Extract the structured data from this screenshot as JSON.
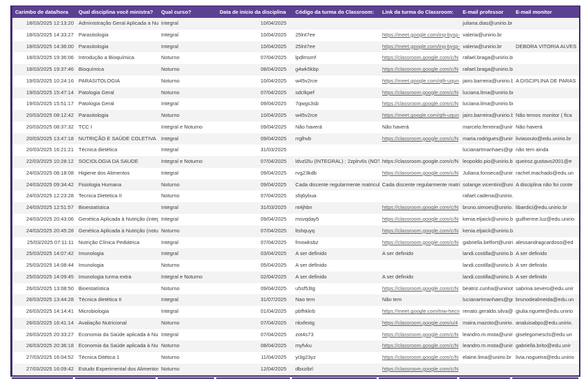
{
  "colors": {
    "header_bg": "#5b4191",
    "border": "#3f2a6e",
    "row_alt": "#f3f3f3",
    "text": "#3b3b3b",
    "header_text": "#ffffff",
    "link": "#5c5f63"
  },
  "table": {
    "columns": [
      {
        "key": "timestamp",
        "label": "Carimbo de data/hora"
      },
      {
        "key": "disciplina",
        "label": "Qual disciplina você ministra?"
      },
      {
        "key": "curso",
        "label": "Qual curso?"
      },
      {
        "key": "inicio",
        "label": "Data de início da disciplina"
      },
      {
        "key": "codigo",
        "label": "Código da turma do Classroom:"
      },
      {
        "key": "link",
        "label": "Link da turma do Classroom:"
      },
      {
        "key": "professor",
        "label": "E-mail professor"
      },
      {
        "key": "monitor",
        "label": "E-mail monitor"
      }
    ],
    "rows": [
      {
        "timestamp": "18/03/2025 12:13:20",
        "disciplina": "Administração Geral Aplicada a Nut",
        "curso": "Integral",
        "inicio": "10/04/2025",
        "codigo": "",
        "link": "",
        "link_is_url": false,
        "professor": "juliana.dias@unirio.br",
        "monitor": ""
      },
      {
        "timestamp": "18/03/2025 14:33:27",
        "disciplina": "Parasitologia",
        "curso": "Integral",
        "inicio": "10/04/2025",
        "codigo": "25lnt7ee",
        "link": "https://meet.google.com/ing-bysp-",
        "link_is_url": true,
        "professor": "valeria@unirio.br",
        "monitor": ""
      },
      {
        "timestamp": "18/03/2025 14:36:00",
        "disciplina": "Parasitologia",
        "curso": "Integral",
        "inicio": "10/04/2025",
        "codigo": "25lnt7ee",
        "link": "https://meet.google.com/ing-bysp-",
        "link_is_url": true,
        "professor": "valeria@unirio.br",
        "monitor": "DEBORA VITORIA ALVES"
      },
      {
        "timestamp": "18/03/2025 19:36:06",
        "disciplina": "Introdução a Bioquímica",
        "curso": "Noturno",
        "inicio": "07/04/2025",
        "codigo": "lpdlmsmf",
        "link": "https://classroom.google.com/c/N",
        "link_is_url": true,
        "professor": "rafael.braga@unirio.br",
        "monitor": ""
      },
      {
        "timestamp": "18/03/2025 19:37:46",
        "disciplina": "Bioquímica",
        "curso": "Noturno",
        "inicio": "08/04/2025",
        "codigo": "g4wk5kbp",
        "link": "https://classroom.google.com/c/N",
        "link_is_url": true,
        "professor": "rafael.braga@unirio.br",
        "monitor": ""
      },
      {
        "timestamp": "19/03/2025 10:24:16",
        "disciplina": "PARASITOLOGIA",
        "curso": "Noturno",
        "inicio": "10/04/2025",
        "codigo": "w45v2rce",
        "link": "https://meet.google.com/qth-uqun",
        "link_is_url": true,
        "professor": "jairo.barreira@unirio.br",
        "monitor": "A DISCIPLINA DE PARAS"
      },
      {
        "timestamp": "19/03/2025 15:47:14",
        "disciplina": "Patologia Geral",
        "curso": "Noturno",
        "inicio": "07/04/2025",
        "codigo": "sdclkpef",
        "link": "https://classroom.google.com/c/N",
        "link_is_url": true,
        "professor": "luciana.lima@unirio.br",
        "monitor": ""
      },
      {
        "timestamp": "19/03/2025 15:51:17",
        "disciplina": "Patologia Geral",
        "curso": "Integral",
        "inicio": "09/04/2025",
        "codigo": "7qwgs3sb",
        "link": "https://classroom.google.com/c/N",
        "link_is_url": true,
        "professor": "luciana.lima@unirio.br",
        "monitor": ""
      },
      {
        "timestamp": "20/03/2025 08:12:42",
        "disciplina": "Parasitologia",
        "curso": "Noturno",
        "inicio": "10/04/2025",
        "codigo": "w45v2rce",
        "link": "https://meet.google.com/qth-uqun",
        "link_is_url": true,
        "professor": "jairo.barreira@unirio.br",
        "monitor": "Não temos monitor ( fica"
      },
      {
        "timestamp": "20/03/2025 08:37:32",
        "disciplina": "TCC I",
        "curso": "Integral e Noturno",
        "inicio": "09/04/2025",
        "codigo": "Não haverá",
        "link": "Não haverá",
        "link_is_url": false,
        "professor": "marcelo.ferreira@unirio.b",
        "monitor": "Não haverá"
      },
      {
        "timestamp": "20/03/2025 13:47:18",
        "disciplina": "NUTRIÇÃO E SAÚDE COLETIVA",
        "curso": "Integral",
        "inicio": "09/04/2025",
        "codigo": "rrglhvb",
        "link": "https://classroom.google.com/c/N",
        "link_is_url": true,
        "professor": "maria.rodrigues@unirio.b",
        "monitor": "liviasouto@edu.unirio.br"
      },
      {
        "timestamp": "20/03/2025 16:21:21",
        "disciplina": "Técnica dietética",
        "curso": "Integral",
        "inicio": "31/03/2025",
        "codigo": "",
        "link": "",
        "link_is_url": false,
        "professor": "lucianartmanhaes@gma",
        "monitor": "não tem ainda"
      },
      {
        "timestamp": "22/03/2025 10:28:12",
        "disciplina": "SOCIOLOGIA DA SAUDE",
        "curso": "Integral e Noturno",
        "inicio": "07/04/2025",
        "codigo": "ldvzl2lu (INTEGRAL) ; 2zplrv6s (NOTUI",
        "link": "https://classroom.google.com/c/N",
        "link_is_url": false,
        "professor": "leopoldo.pio@unirio.br",
        "monitor": "queiroz.gustavo2001@e"
      },
      {
        "timestamp": "24/03/2025 08:18:08",
        "disciplina": "Higiene dos Alimentos",
        "curso": "Integral",
        "inicio": "09/04/2025",
        "codigo": "rvg23kdb",
        "link": "https://classroom.google.com/c/N",
        "link_is_url": true,
        "professor": "Juliana.fonseca@unirio.b",
        "monitor": "rachel.machado@edu.un"
      },
      {
        "timestamp": "24/03/2025 09:34:42",
        "disciplina": "Fisiologia Humana",
        "curso": "Noturno",
        "inicio": "09/04/2025",
        "codigo": "Cada discente regularmente matricula",
        "link": "Cada discente regularmente matric",
        "link_is_url": false,
        "professor": "solange.vicentini@unirio",
        "monitor": "A disciplina não foi conte"
      },
      {
        "timestamp": "24/03/2025 12:23:28",
        "disciplina": "Tecnica Dietetica II",
        "curso": "Noturno",
        "inicio": "07/04/2025",
        "codigo": "sfq6ybua",
        "link": "",
        "link_is_url": false,
        "professor": "rafael.cadena@unirio.br",
        "monitor": ""
      },
      {
        "timestamp": "24/03/2025 12:51:57",
        "disciplina": "Bioestatística",
        "curso": "Integral",
        "inicio": "31/03/2025",
        "codigo": "nt4jhbn",
        "link": "https://classroom.google.com/c/N",
        "link_is_url": true,
        "professor": "bruno.simoes@unirio.br",
        "monitor": "libardici@edu.unirio.br"
      },
      {
        "timestamp": "24/03/2025 20:43:06",
        "disciplina": "Genética Aplicada à Nutrição (integr",
        "curso": "Integral",
        "inicio": "09/04/2025",
        "codigo": "msvqday5",
        "link": "https://classroom.google.com/c/N",
        "link_is_url": true,
        "professor": "kenia.eljaick@unirio.br",
        "monitor": "guilherme.luz@edu.unirio"
      },
      {
        "timestamp": "24/03/2025 20:45:28",
        "disciplina": "Genética Aplicada à Nutrição (notur",
        "curso": "Noturno",
        "inicio": "07/04/2025",
        "codigo": "ltshquyq",
        "link": "https://classroom.google.com/c/N",
        "link_is_url": true,
        "professor": "kenia.eljaick@unirio.br",
        "monitor": ""
      },
      {
        "timestamp": "25/03/2025 07:11:11",
        "disciplina": "Nutrição Clínica Pediátrica",
        "curso": "Integral",
        "inicio": "07/04/2025",
        "codigo": "fmowksbz",
        "link": "https://classroom.google.com/c/N",
        "link_is_url": true,
        "professor": "gabriella.belfort@unirio.b",
        "monitor": "alessandragcardoso@ed"
      },
      {
        "timestamp": "25/03/2025 14:07:42",
        "disciplina": "Imunologia",
        "curso": "Integral",
        "inicio": "03/04/2025",
        "codigo": "A ser definido",
        "link": "A ser definido",
        "link_is_url": false,
        "professor": "landi.costilla@unirio.br",
        "monitor": "A ser definido"
      },
      {
        "timestamp": "25/03/2025 14:08:44",
        "disciplina": "Imunologia",
        "curso": "Noturno",
        "inicio": "05/04/2025",
        "codigo": "A ser definido",
        "link": "",
        "link_is_url": false,
        "professor": "landi.costilla@unirio.br",
        "monitor": "A ser definido"
      },
      {
        "timestamp": "25/03/2025 14:09:45",
        "disciplina": "Imunologia  turma extra",
        "curso": "Integral e Noturno",
        "inicio": "02/04/2025",
        "codigo": "A ser definido",
        "link": "A ser definido",
        "link_is_url": false,
        "professor": "landi.costilla@unirio.br",
        "monitor": "A ser definido"
      },
      {
        "timestamp": "26/03/2025 13:08:50",
        "disciplina": "Bioestatística",
        "curso": "Noturno",
        "inicio": "09/04/2025",
        "codigo": "u5sf53tg",
        "link": "https://classroom.google.com/c/N",
        "link_is_url": true,
        "professor": "beatriz.cunha@uniriotec.",
        "monitor": "sabrina.severo@edu.unir"
      },
      {
        "timestamp": "26/03/2025 13:44:28",
        "disciplina": "Técnica dietética II",
        "curso": "Integral",
        "inicio": "31/07/2025",
        "codigo": "Nao tem",
        "link": "Não tem",
        "link_is_url": false,
        "professor": "lucianartmanhaes@gma",
        "monitor": "brunodealmeida@edu.un"
      },
      {
        "timestamp": "26/03/2025 14:14:41",
        "disciplina": "Microbiologia",
        "curso": "Integral",
        "inicio": "01/04/2025",
        "codigo": "pbfhkkrb",
        "link": "https://meet.google.com/tnw-hecn",
        "link_is_url": true,
        "professor": "renato.geraldo.silva@uni",
        "monitor": "giulia.riguete@edu.unirio"
      },
      {
        "timestamp": "26/03/2025 16:41:14",
        "disciplina": "Avaliação Nutricional",
        "curso": "Noturno",
        "inicio": "07/04/2025",
        "codigo": "nkxfextg",
        "link": "https://classroom.google.com/u/4",
        "link_is_url": true,
        "professor": "maira.mazoto@unirio.br",
        "monitor": "analuisabps@edu.unirio."
      },
      {
        "timestamp": "26/03/2025 20:33:27",
        "disciplina": "Economia da Saúde aplicada à Nutri",
        "curso": "Integral",
        "inicio": "07/04/2025",
        "codigo": "zot4s73",
        "link": "https://classroom.google.com/c/N",
        "link_is_url": true,
        "professor": "leandro.m.mota@unirio.b",
        "monitor": "giselegomescls@edu.un"
      },
      {
        "timestamp": "26/03/2025 20:36:18",
        "disciplina": "Economia da Saúde aplicada à Nutri",
        "curso": "Noturno",
        "inicio": "08/04/2025",
        "codigo": "myfvku",
        "link": "https://classroom.google.com/c/N",
        "link_is_url": true,
        "professor": "leandro.m.mota@unirio.b",
        "monitor": "gabriella.brito@edu.unir"
      },
      {
        "timestamp": "27/03/2025 16:04:52",
        "disciplina": "Técnica Ditética 1",
        "curso": "Noturno",
        "inicio": "11/04/2025",
        "codigo": "yi3g23yz",
        "link": "https://classroom.google.com/c/N",
        "link_is_url": true,
        "professor": "elaine.lima@unirio.br",
        "monitor": "livia.nogueira@edu.unirio"
      },
      {
        "timestamp": "27/03/2025 16:09:42",
        "disciplina": "Estudo Experimental dos Alimentos",
        "curso": "Noturno",
        "inicio": "12/04/2025",
        "codigo": "dbxzibrl",
        "link": "https://classroom.google.com/c/N",
        "link_is_url": true,
        "professor": "",
        "monitor": ""
      }
    ]
  }
}
